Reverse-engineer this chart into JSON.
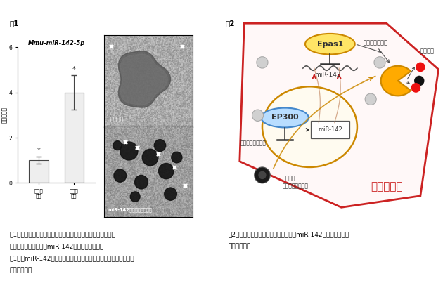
{
  "fig1_title": "図1",
  "fig2_title": "図2",
  "bar_title": "Mmu-miR-142-5p",
  "bar_ylabel": "相対発現量",
  "bar_cat1": "若い幹\n細胞",
  "bar_cat2": "加齢幹\n細胞",
  "bar_values": [
    1.0,
    4.0
  ],
  "bar_errors": [
    0.15,
    0.75
  ],
  "bar_color": "#eeeeee",
  "bar_edge_color": "#444444",
  "ylim": [
    0,
    6
  ],
  "yticks": [
    0,
    2,
    4,
    6
  ],
  "normal_cell_label": "正常な細胞",
  "mir142_cell_label": "miR-142を発現させた細胞",
  "epas1_label": "Epas1",
  "ep300_label": "EP300",
  "bekisofaji_label": "ベキソファジー",
  "kassei_sanso_label": "活性酸素",
  "peroxisome_label": "ペルオキシソーム",
  "old_peroxisome_label": "老化した\nペルオキシソーム",
  "mir142_label": "miR-142",
  "cell_label": "加齢幹細胞",
  "caption1a": "図1左：加齢マウスの骨髄間葉系幹細胞では、若齢マウスの骨",
  "caption1b": "髄間葉系幹細胞に比べmiR-142の発現量が多い。",
  "caption1c": "図1右：miR-142を発現させた細胞ではペルオキシソーム（矢印）",
  "caption1d": "が増加する。",
  "caption2a": "図2：今回研究チームが明らかにした、miR-142による細胞老化",
  "caption2b": "メカニズム。",
  "background_color": "#ffffff"
}
